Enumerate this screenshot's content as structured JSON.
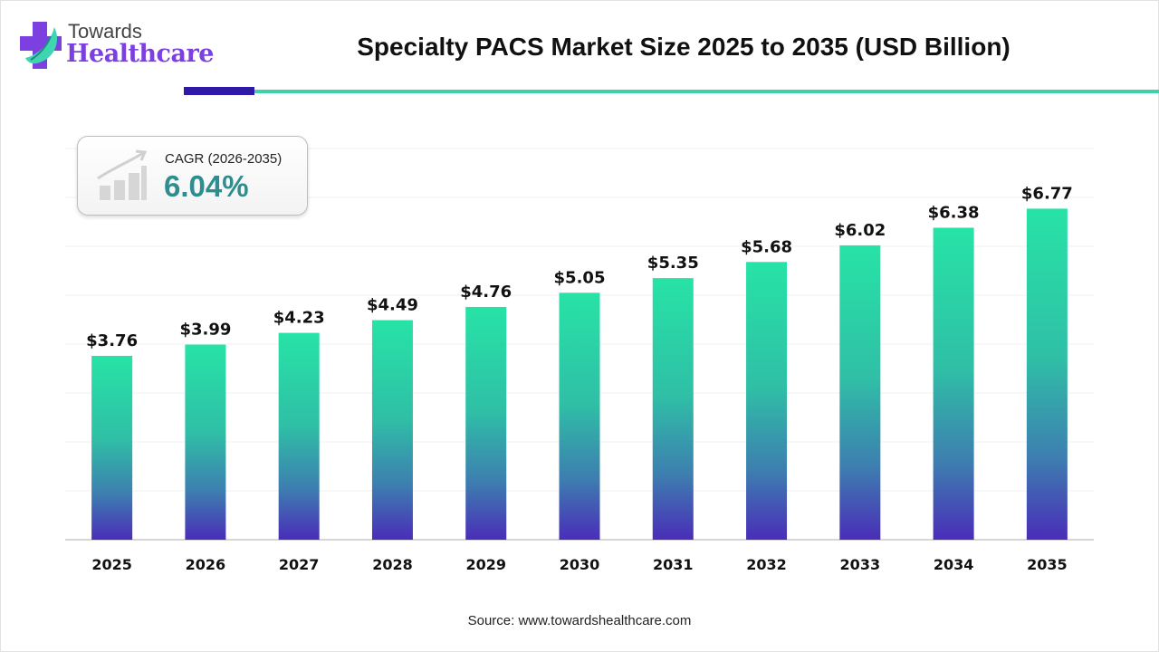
{
  "brand": {
    "line1": "Towards",
    "line2": "Healthcare"
  },
  "colors": {
    "bar_top": "#27e3a6",
    "bar_bottom": "#4a2db8",
    "accent_dark": "#2e1aa6",
    "accent_light": "#3fd2a8",
    "cagr_value": "#2e8d8f"
  },
  "cagr": {
    "label": "CAGR (2026-2035)",
    "value": "6.04%",
    "icon": "growth-chart-icon"
  },
  "source": "Source: www.towardshealthcare.com",
  "chart_data": {
    "type": "bar",
    "title": "Specialty PACS Market Size 2025 to 2035 (USD Billion)",
    "categories": [
      "2025",
      "2026",
      "2027",
      "2028",
      "2029",
      "2030",
      "2031",
      "2032",
      "2033",
      "2034",
      "2035"
    ],
    "values": [
      3.76,
      3.99,
      4.23,
      4.49,
      4.76,
      5.05,
      5.35,
      5.68,
      6.02,
      6.38,
      6.77
    ],
    "data_labels": [
      "$3.76",
      "$3.99",
      "$4.23",
      "$4.49",
      "$4.76",
      "$5.05",
      "$5.35",
      "$5.68",
      "$6.02",
      "$6.38",
      "$6.77"
    ],
    "xlabel": "",
    "ylabel": "",
    "ylim": [
      0,
      8
    ],
    "grid": true,
    "y_tick_labels_shown": false
  }
}
